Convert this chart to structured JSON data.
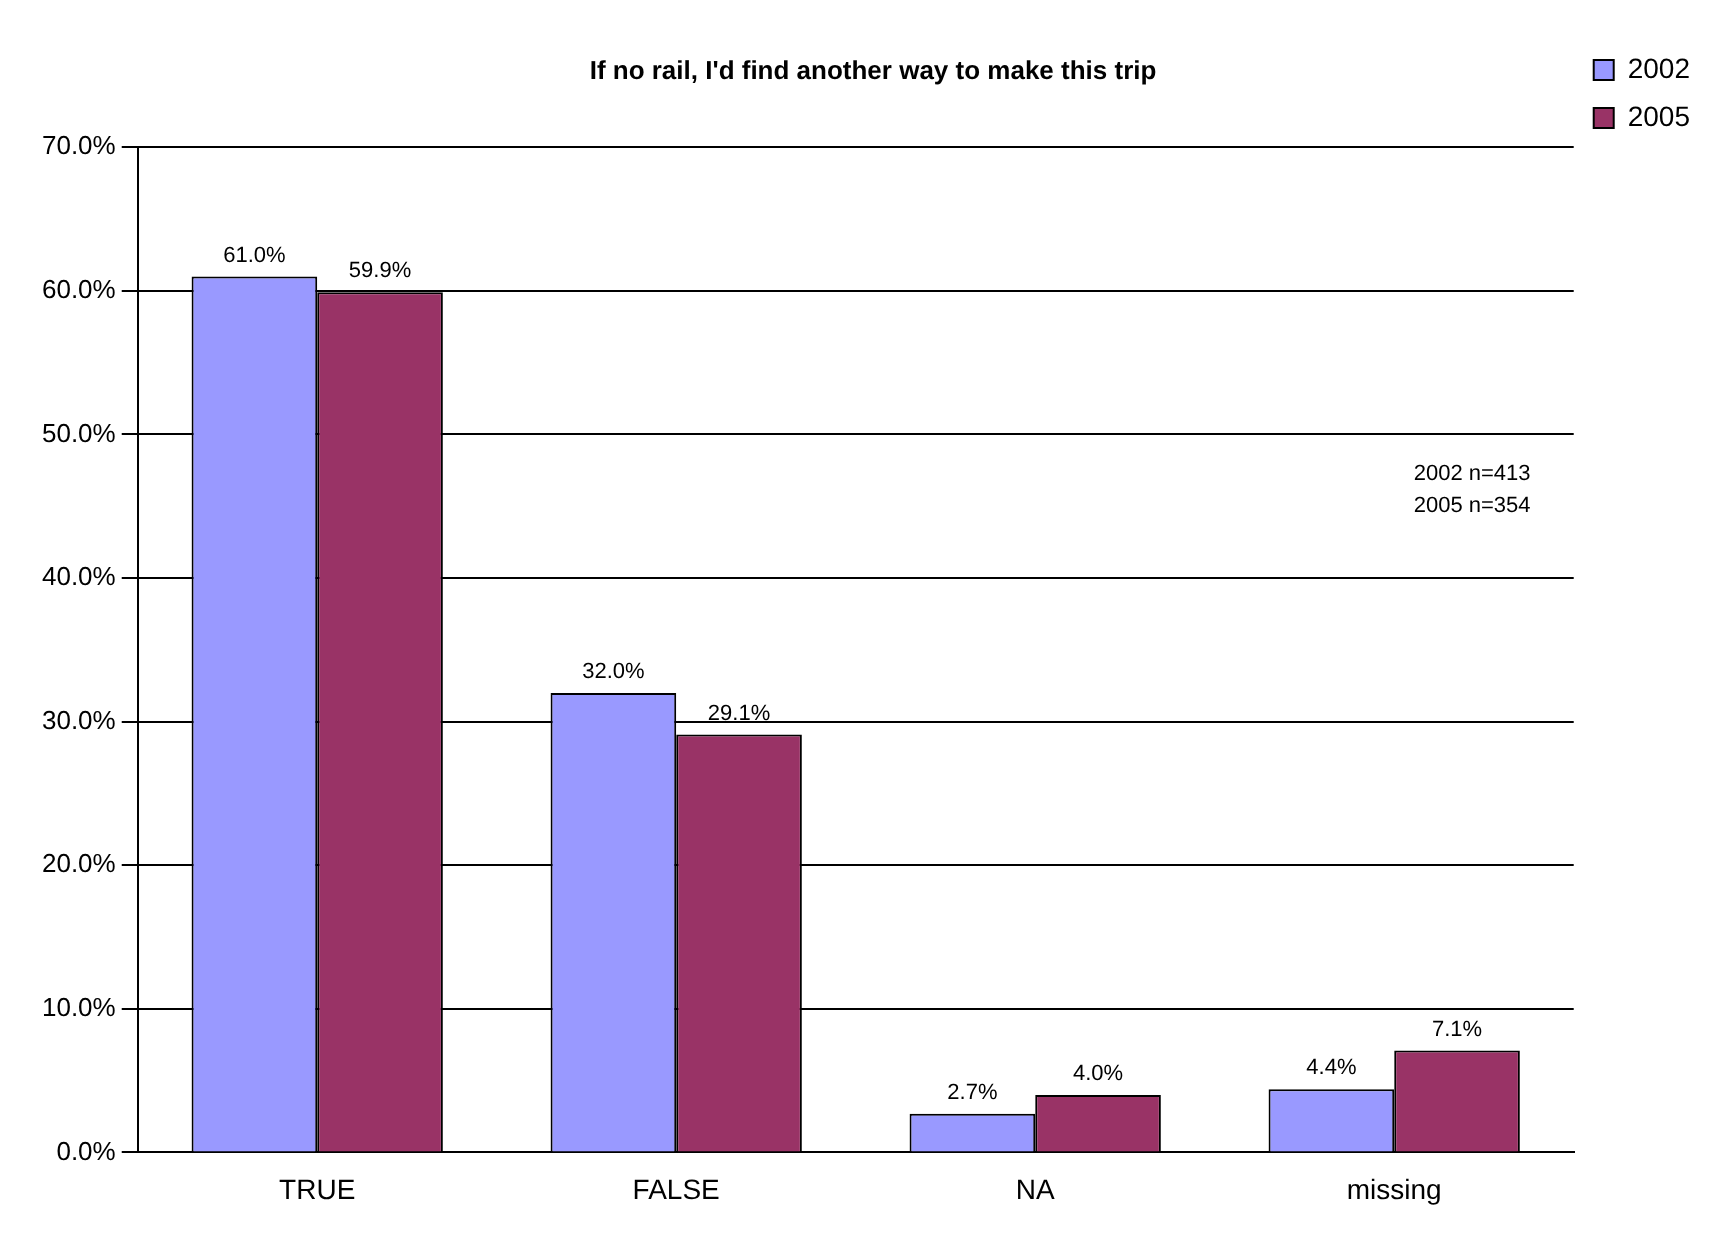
{
  "chart_data": {
    "type": "bar",
    "title": "If no rail, I'd find another way to make this trip",
    "categories": [
      "TRUE",
      "FALSE",
      "NA",
      "missing"
    ],
    "series": [
      {
        "name": "2002",
        "color": "#9999ff",
        "values": [
          61.0,
          32.0,
          2.7,
          4.4
        ],
        "value_labels": [
          "61.0%",
          "32.0%",
          "2.7%",
          "4.4%"
        ]
      },
      {
        "name": "2005",
        "color": "#993366",
        "values": [
          59.9,
          29.1,
          4.0,
          7.1
        ],
        "value_labels": [
          "59.9%",
          "29.1%",
          "4.0%",
          "7.1%"
        ]
      }
    ],
    "ylim": [
      0,
      70
    ],
    "yticks": [
      {
        "value": 0,
        "label": "0.0%"
      },
      {
        "value": 10,
        "label": "10.0%"
      },
      {
        "value": 20,
        "label": "20.0%"
      },
      {
        "value": 30,
        "label": "30.0%"
      },
      {
        "value": 40,
        "label": "40.0%"
      },
      {
        "value": 50,
        "label": "50.0%"
      },
      {
        "value": 60,
        "label": "60.0%"
      },
      {
        "value": 70,
        "label": "70.0%"
      }
    ],
    "grid": "y",
    "legend": "top right",
    "annotations": [
      "2002 n=413",
      "2005 n=354"
    ]
  }
}
